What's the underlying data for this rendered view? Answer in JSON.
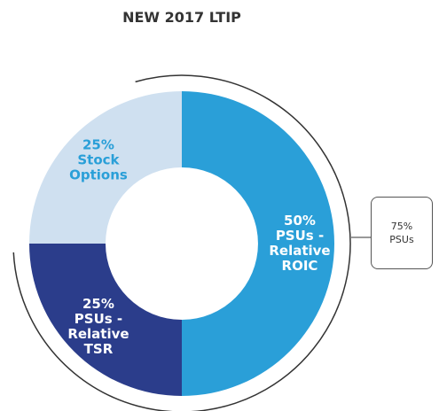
{
  "chart_data": {
    "type": "donut",
    "title": "NEW 2017 LTIP",
    "categories": [
      "PSUs - Relative ROIC",
      "PSUs - Relative TSR",
      "Stock Options"
    ],
    "values": [
      50,
      25,
      25
    ],
    "value_labels": [
      "50%",
      "25%",
      "25%"
    ],
    "colors": [
      "#2a9fd8",
      "#2b3d8b",
      "#cfe0f0"
    ],
    "label_colors": [
      "#ffffff",
      "#ffffff",
      "#2a9fd8"
    ],
    "annotation": {
      "value": "75%",
      "label": "PSUs"
    }
  }
}
